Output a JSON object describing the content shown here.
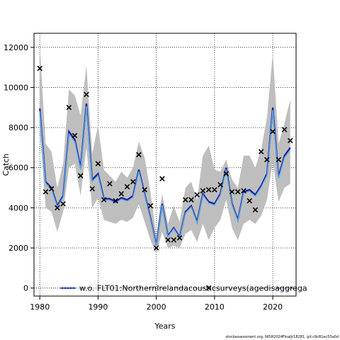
{
  "chart_data": {
    "type": "line",
    "xlabel": "Years",
    "ylabel": "Catch",
    "xlim": [
      1979,
      2024
    ],
    "ylim": [
      -400,
      12700
    ],
    "xticks": [
      1980,
      1990,
      2000,
      2010,
      2020
    ],
    "yticks": [
      0,
      2000,
      4000,
      6000,
      8000,
      10000,
      12000
    ],
    "grid": true,
    "colors": {
      "band": "#bebebe",
      "estimate_dark": "#1a1a9a",
      "estimate_light": "#5aaee8",
      "observed": "#000000"
    },
    "years": [
      1980,
      1981,
      1982,
      1983,
      1984,
      1985,
      1986,
      1987,
      1988,
      1989,
      1990,
      1991,
      1992,
      1993,
      1994,
      1995,
      1996,
      1997,
      1998,
      1999,
      2000,
      2001,
      2002,
      2003,
      2004,
      2005,
      2006,
      2007,
      2008,
      2009,
      2010,
      2011,
      2012,
      2013,
      2014,
      2015,
      2016,
      2017,
      2018,
      2019,
      2020,
      2021,
      2022,
      2023
    ],
    "observed": [
      10950,
      4800,
      4950,
      4000,
      4200,
      9000,
      7600,
      5600,
      9650,
      4950,
      6200,
      4400,
      5200,
      4350,
      4700,
      5050,
      5300,
      6650,
      4900,
      4100,
      2000,
      5450,
      2400,
      2400,
      2500,
      4400,
      4400,
      4650,
      4850,
      4900,
      4900,
      5150,
      5700,
      4800,
      4800,
      4850,
      4350,
      3900,
      6800,
      6400,
      7800,
      6400,
      7900,
      7350
    ],
    "estimate": [
      8950,
      5300,
      5000,
      4100,
      4600,
      7800,
      7400,
      6000,
      9200,
      5400,
      5700,
      4450,
      4450,
      4300,
      4500,
      4400,
      4600,
      5900,
      4700,
      3500,
      2150,
      4200,
      2600,
      3000,
      2550,
      3800,
      4100,
      3300,
      4700,
      4300,
      4200,
      4700,
      6000,
      4200,
      3400,
      4800,
      4900,
      4650,
      5100,
      5700,
      9000,
      5550,
      6600,
      7000
    ],
    "upper": [
      12100,
      7200,
      6800,
      5000,
      6200,
      9900,
      9600,
      8600,
      11100,
      6700,
      8100,
      5900,
      5600,
      5300,
      5800,
      5500,
      6000,
      7300,
      6500,
      4800,
      2600,
      4700,
      3200,
      4100,
      3300,
      5000,
      5300,
      4400,
      6600,
      7100,
      5900,
      5800,
      6400,
      5400,
      5000,
      6600,
      6600,
      6000,
      6900,
      8500,
      11700,
      7200,
      8200,
      9400
    ],
    "lower": [
      7800,
      4000,
      3800,
      2800,
      3800,
      6000,
      6200,
      4600,
      7000,
      4000,
      4500,
      3400,
      3300,
      3200,
      3400,
      3300,
      3500,
      4200,
      3300,
      2400,
      1700,
      2800,
      2000,
      2100,
      2000,
      2700,
      2900,
      2300,
      3200,
      2400,
      3000,
      3400,
      4400,
      3000,
      2400,
      3200,
      3400,
      3200,
      3600,
      4400,
      6300,
      4300,
      5000,
      5200
    ],
    "legend": {
      "label": "w.o. FLT01:NorthernIrelandacousticsurveys(agedisaggrega",
      "marker_x": 2009,
      "marker_y": 0
    },
    "footer": "stockassessment.org, NISH2024FinalJr18281, git:c9c81ec53a0d"
  }
}
